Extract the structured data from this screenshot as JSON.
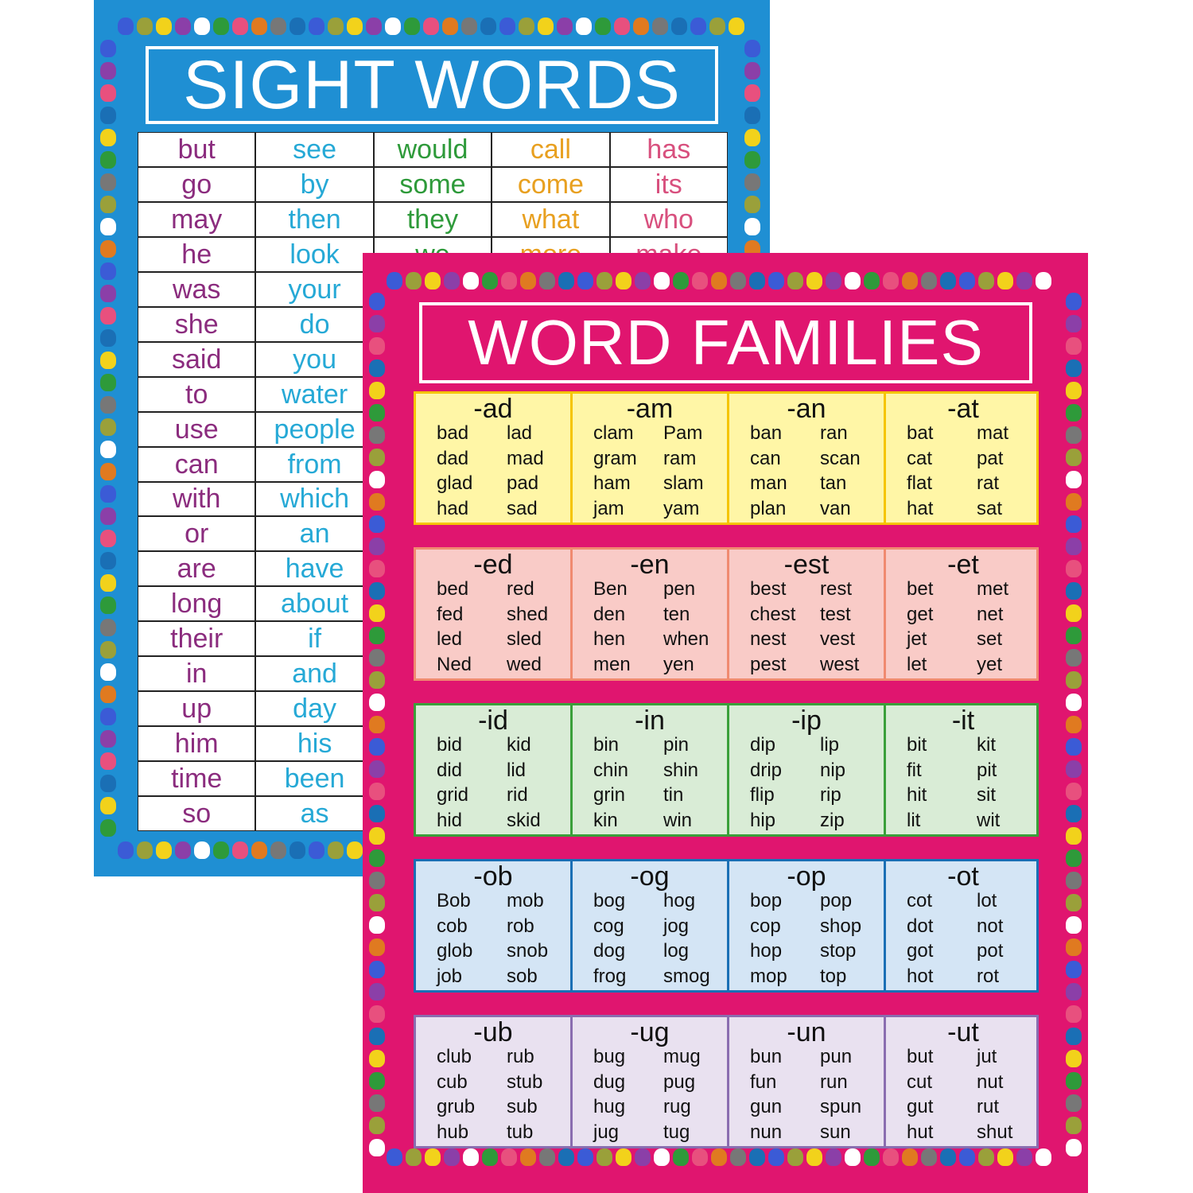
{
  "sight_words": {
    "title": "SIGHT WORDS",
    "column_colors": [
      "#8b2c7e",
      "#26a9d6",
      "#2e9a3a",
      "#e8a020",
      "#d8507e"
    ],
    "rows": [
      [
        "but",
        "see",
        "would",
        "call",
        "has"
      ],
      [
        "go",
        "by",
        "some",
        "come",
        "its"
      ],
      [
        "may",
        "then",
        "they",
        "what",
        "who"
      ],
      [
        "he",
        "look",
        "we",
        "more",
        "make"
      ],
      [
        "was",
        "your",
        "",
        "",
        ""
      ],
      [
        "she",
        "do",
        "",
        "",
        ""
      ],
      [
        "said",
        "you",
        "",
        "",
        ""
      ],
      [
        "to",
        "water",
        "",
        "",
        ""
      ],
      [
        "use",
        "people",
        "",
        "",
        ""
      ],
      [
        "can",
        "from",
        "",
        "",
        ""
      ],
      [
        "with",
        "which",
        "",
        "",
        ""
      ],
      [
        "or",
        "an",
        "",
        "",
        ""
      ],
      [
        "are",
        "have",
        "",
        "",
        ""
      ],
      [
        "long",
        "about",
        "",
        "",
        ""
      ],
      [
        "their",
        "if",
        "",
        "",
        ""
      ],
      [
        "in",
        "and",
        "",
        "",
        ""
      ],
      [
        "up",
        "day",
        "",
        "",
        ""
      ],
      [
        "him",
        "his",
        "",
        "",
        ""
      ],
      [
        "time",
        "been",
        "",
        "",
        ""
      ],
      [
        "so",
        "as",
        "",
        "",
        ""
      ]
    ]
  },
  "word_families": {
    "title": "WORD FAMILIES",
    "rows": [
      {
        "bg": "#fff6a6",
        "border": "#f5c400",
        "families": [
          {
            "ending": "-ad",
            "words": [
              "bad",
              "lad",
              "dad",
              "mad",
              "glad",
              "pad",
              "had",
              "sad"
            ]
          },
          {
            "ending": "-am",
            "words": [
              "clam",
              "Pam",
              "gram",
              "ram",
              "ham",
              "slam",
              "jam",
              "yam"
            ]
          },
          {
            "ending": "-an",
            "words": [
              "ban",
              "ran",
              "can",
              "scan",
              "man",
              "tan",
              "plan",
              "van"
            ]
          },
          {
            "ending": "-at",
            "words": [
              "bat",
              "mat",
              "cat",
              "pat",
              "flat",
              "rat",
              "hat",
              "sat"
            ]
          }
        ]
      },
      {
        "bg": "#f9cbc7",
        "border": "#f08a70",
        "families": [
          {
            "ending": "-ed",
            "words": [
              "bed",
              "red",
              "fed",
              "shed",
              "led",
              "sled",
              "Ned",
              "wed"
            ]
          },
          {
            "ending": "-en",
            "words": [
              "Ben",
              "pen",
              "den",
              "ten",
              "hen",
              "when",
              "men",
              "yen"
            ]
          },
          {
            "ending": "-est",
            "words": [
              "best",
              "rest",
              "chest",
              "test",
              "nest",
              "vest",
              "pest",
              "west"
            ]
          },
          {
            "ending": "-et",
            "words": [
              "bet",
              "met",
              "get",
              "net",
              "jet",
              "set",
              "let",
              "yet"
            ]
          }
        ]
      },
      {
        "bg": "#d9ecd6",
        "border": "#3a9f3a",
        "families": [
          {
            "ending": "-id",
            "words": [
              "bid",
              "kid",
              "did",
              "lid",
              "grid",
              "rid",
              "hid",
              "skid"
            ]
          },
          {
            "ending": "-in",
            "words": [
              "bin",
              "pin",
              "chin",
              "shin",
              "grin",
              "tin",
              "kin",
              "win"
            ]
          },
          {
            "ending": "-ip",
            "words": [
              "dip",
              "lip",
              "drip",
              "nip",
              "flip",
              "rip",
              "hip",
              "zip"
            ]
          },
          {
            "ending": "-it",
            "words": [
              "bit",
              "kit",
              "fit",
              "pit",
              "hit",
              "sit",
              "lit",
              "wit"
            ]
          }
        ]
      },
      {
        "bg": "#d4e5f5",
        "border": "#1a6fb5",
        "families": [
          {
            "ending": "-ob",
            "words": [
              "Bob",
              "mob",
              "cob",
              "rob",
              "glob",
              "snob",
              "job",
              "sob"
            ]
          },
          {
            "ending": "-og",
            "words": [
              "bog",
              "hog",
              "cog",
              "jog",
              "dog",
              "log",
              "frog",
              "smog"
            ]
          },
          {
            "ending": "-op",
            "words": [
              "bop",
              "pop",
              "cop",
              "shop",
              "hop",
              "stop",
              "mop",
              "top"
            ]
          },
          {
            "ending": "-ot",
            "words": [
              "cot",
              "lot",
              "dot",
              "not",
              "got",
              "pot",
              "hot",
              "rot"
            ]
          }
        ]
      },
      {
        "bg": "#e9e1f0",
        "border": "#8a6db0",
        "families": [
          {
            "ending": "-ub",
            "words": [
              "club",
              "rub",
              "cub",
              "stub",
              "grub",
              "sub",
              "hub",
              "tub"
            ]
          },
          {
            "ending": "-ug",
            "words": [
              "bug",
              "mug",
              "dug",
              "pug",
              "hug",
              "rug",
              "jug",
              "tug"
            ]
          },
          {
            "ending": "-un",
            "words": [
              "bun",
              "pun",
              "fun",
              "run",
              "gun",
              "spun",
              "nun",
              "sun"
            ]
          },
          {
            "ending": "-ut",
            "words": [
              "but",
              "jut",
              "cut",
              "nut",
              "gut",
              "rut",
              "hut",
              "shut"
            ]
          }
        ]
      }
    ]
  },
  "hand_colors": [
    "#3b5bd6",
    "#9aa03a",
    "#f2d21b",
    "#8b3fa8",
    "#ffffff",
    "#2e9a3a",
    "#e8507e",
    "#e07a20",
    "#777777",
    "#1a6fb5"
  ]
}
